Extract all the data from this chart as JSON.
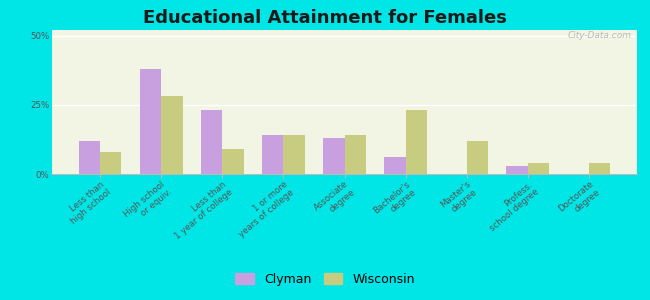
{
  "title": "Educational Attainment for Females",
  "categories": [
    "Less than\nhigh school",
    "High school\nor equiv.",
    "Less than\n1 year of college",
    "1 or more\nyears of college",
    "Associate\ndegree",
    "Bachelor's\ndegree",
    "Master's\ndegree",
    "Profess.\nschool degree",
    "Doctorate\ndegree"
  ],
  "clyman_values": [
    12,
    38,
    23,
    14,
    13,
    6,
    0,
    3,
    0
  ],
  "wisconsin_values": [
    8,
    28,
    9,
    14,
    14,
    23,
    12,
    4,
    4
  ],
  "clyman_color": "#c8a0e0",
  "wisconsin_color": "#c8cc80",
  "background_color": "#00e5e5",
  "plot_bg": "#f2f5e4",
  "ylabel_ticks": [
    "0%",
    "25%",
    "50%"
  ],
  "yticks": [
    0,
    25,
    50
  ],
  "ylim": [
    0,
    52
  ],
  "bar_width": 0.35,
  "legend_labels": [
    "Clyman",
    "Wisconsin"
  ],
  "title_fontsize": 13,
  "tick_fontsize": 6.2,
  "legend_fontsize": 9
}
